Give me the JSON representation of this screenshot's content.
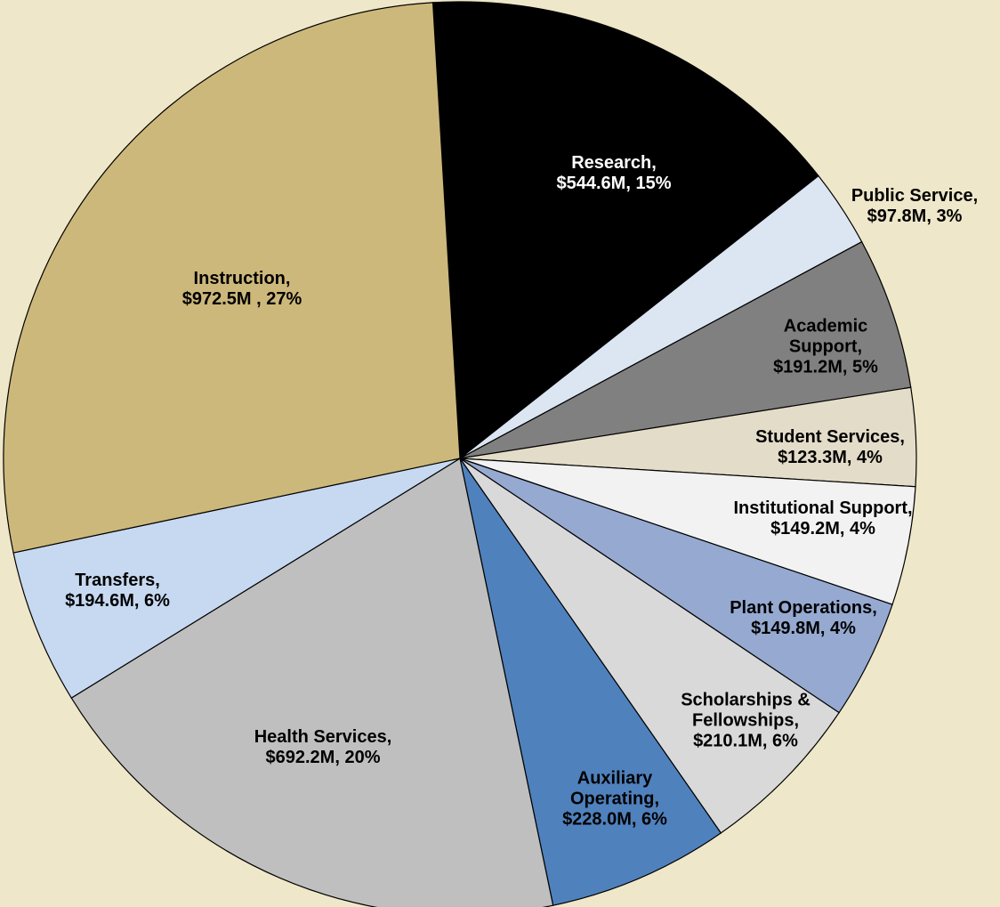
{
  "chart_data": {
    "type": "pie",
    "categories": [
      "Research,",
      "Public Service,",
      "Academic Support,",
      "Student Services,",
      "Institutional Support,",
      "Plant Operations,",
      "Scholarships & Fellowships,",
      "Auxiliary Operating,",
      "Health Services,",
      "Transfers,",
      "Instruction,"
    ],
    "values": [
      544.6,
      97.8,
      191.2,
      123.3,
      149.2,
      149.8,
      210.1,
      228.0,
      692.2,
      194.6,
      972.5
    ],
    "value_labels": [
      "$544.6M, 15%",
      "$97.8M, 3%",
      "$191.2M, 5%",
      "$123.3M, 4%",
      "$149.2M, 4%",
      "$149.8M, 4%",
      "$210.1M, 6%",
      "$228.0M, 6%",
      "$692.2M, 20%",
      "$194.6M, 6%",
      "$972.5M , 27%"
    ],
    "colors": [
      "#000000",
      "#dce6f2",
      "#808080",
      "#e3dcc8",
      "#f2f2f2",
      "#95a9d1",
      "#d9d9d9",
      "#4f81bd",
      "#bfbfbf",
      "#c6d9f1",
      "#cdb87b"
    ]
  }
}
